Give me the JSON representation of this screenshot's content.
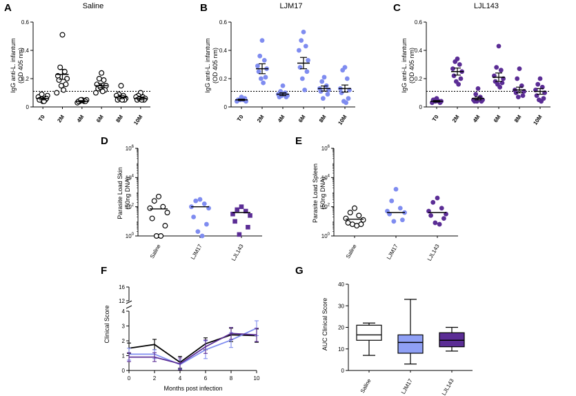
{
  "colors": {
    "saline": "#000000",
    "ljm17": "#7f8cf0",
    "ljl143": "#5b2d95",
    "ljm17_box": "#8fa0f5",
    "ljl143_box": "#5b2d95"
  },
  "panels": {
    "A": {
      "letter": "A",
      "title": "Saline",
      "ylabel1": "IgG anti-L. infantum",
      "ylabel2": "(OD 405 nm)"
    },
    "B": {
      "letter": "B",
      "title": "LJM17",
      "ylabel1": "IgG anti-L. infantum",
      "ylabel2": "(OD 405 nm)"
    },
    "C": {
      "letter": "C",
      "title": "LJL143",
      "ylabel1": "IgG anti-L. infantum",
      "ylabel2": "(OD 405 nm)"
    },
    "D": {
      "letter": "D",
      "ylabel1": "Parasite Load Skin",
      "ylabel2": "(50ng DNA)"
    },
    "E": {
      "letter": "E",
      "ylabel1": "Parasite Load Spleen",
      "ylabel2": "(50ng DNA)"
    },
    "F": {
      "letter": "F",
      "ylabel": "Clinical Score",
      "xlabel": "Months post infection"
    },
    "G": {
      "letter": "G",
      "ylabel": "AUC Clinical Score"
    }
  },
  "chart_data": [
    {
      "id": "A",
      "type": "scatter",
      "title": "Saline",
      "ylabel": "IgG anti-L. infantum (OD 405 nm)",
      "categories": [
        "T0",
        "2M",
        "4M",
        "6M",
        "8M",
        "10M"
      ],
      "yticks": [
        0,
        0.2,
        0.4,
        0.6
      ],
      "ylim": [
        0,
        0.6
      ],
      "threshold": 0.11,
      "marker": "open-circle",
      "points": [
        [
          0.04,
          0.06,
          0.05,
          0.07,
          0.08,
          0.05,
          0.06,
          0.09,
          0.04
        ],
        [
          0.51,
          0.28,
          0.25,
          0.22,
          0.2,
          0.19,
          0.16,
          0.15,
          0.12,
          0.1
        ],
        [
          0.05,
          0.04,
          0.04,
          0.03,
          0.05,
          0.04,
          0.04,
          0.05
        ],
        [
          0.24,
          0.2,
          0.19,
          0.16,
          0.15,
          0.13,
          0.12,
          0.14,
          0.11,
          0.1
        ],
        [
          0.15,
          0.09,
          0.08,
          0.08,
          0.06,
          0.05,
          0.05,
          0.06,
          0.05
        ],
        [
          0.1,
          0.08,
          0.07,
          0.07,
          0.06,
          0.05,
          0.05,
          0.06,
          0.05
        ]
      ],
      "means": [
        0.06,
        0.23,
        0.04,
        0.15,
        0.07,
        0.06
      ],
      "sem": [
        0.01,
        0.035,
        0.005,
        0.015,
        0.012,
        0.01
      ]
    },
    {
      "id": "B",
      "type": "scatter",
      "title": "LJM17",
      "ylabel": "IgG anti-L. infantum (OD 405 nm)",
      "categories": [
        "T0",
        "2M",
        "4M",
        "6M",
        "8M",
        "10M"
      ],
      "yticks": [
        0,
        0.2,
        0.4,
        0.6
      ],
      "ylim": [
        0,
        0.6
      ],
      "threshold": 0.11,
      "marker": "filled-circle",
      "points": [
        [
          0.07,
          0.05,
          0.05,
          0.04,
          0.04,
          0.05,
          0.06,
          0.05
        ],
        [
          0.47,
          0.36,
          0.33,
          0.29,
          0.27,
          0.25,
          0.21,
          0.2,
          0.17
        ],
        [
          0.15,
          0.11,
          0.1,
          0.09,
          0.08,
          0.07,
          0.07,
          0.08
        ],
        [
          0.53,
          0.47,
          0.43,
          0.4,
          0.33,
          0.28,
          0.25,
          0.2,
          0.12
        ],
        [
          0.21,
          0.18,
          0.15,
          0.13,
          0.12,
          0.11,
          0.09,
          0.06
        ],
        [
          0.28,
          0.26,
          0.2,
          0.13,
          0.12,
          0.1,
          0.06,
          0.04,
          0.03
        ]
      ],
      "means": [
        0.05,
        0.27,
        0.09,
        0.31,
        0.13,
        0.13
      ],
      "sem": [
        0.005,
        0.035,
        0.01,
        0.04,
        0.018,
        0.025
      ]
    },
    {
      "id": "C",
      "type": "scatter",
      "title": "LJL143",
      "ylabel": "IgG anti-L. infantum (OD 405 nm)",
      "categories": [
        "T0",
        "2M",
        "4M",
        "6M",
        "8M",
        "10M"
      ],
      "yticks": [
        0,
        0.2,
        0.4,
        0.6
      ],
      "ylim": [
        0,
        0.6
      ],
      "threshold": 0.11,
      "marker": "filled-circle",
      "points": [
        [
          0.06,
          0.05,
          0.04,
          0.03,
          0.04,
          0.05,
          0.03,
          0.04
        ],
        [
          0.34,
          0.32,
          0.3,
          0.27,
          0.25,
          0.22,
          0.2,
          0.18,
          0.16
        ],
        [
          0.13,
          0.09,
          0.07,
          0.05,
          0.05,
          0.04,
          0.04,
          0.04
        ],
        [
          0.43,
          0.28,
          0.26,
          0.22,
          0.2,
          0.18,
          0.17,
          0.16,
          0.14
        ],
        [
          0.27,
          0.2,
          0.15,
          0.12,
          0.11,
          0.1,
          0.08,
          0.07
        ],
        [
          0.2,
          0.16,
          0.14,
          0.12,
          0.1,
          0.08,
          0.06,
          0.05,
          0.04
        ]
      ],
      "means": [
        0.04,
        0.25,
        0.06,
        0.21,
        0.12,
        0.11
      ],
      "sem": [
        0.005,
        0.025,
        0.01,
        0.03,
        0.02,
        0.02
      ]
    },
    {
      "id": "D",
      "type": "scatter",
      "scale": "log",
      "ylabel": "Parasite Load Skin (50ng DNA)",
      "categories": [
        "Saline",
        "LJM17",
        "LJL143"
      ],
      "yticks": [
        "10^0",
        "10^2",
        "10^4",
        "10^6"
      ],
      "ylim_log10": [
        0,
        6
      ],
      "markers": [
        "open-circle",
        "filled-circle",
        "filled-square"
      ],
      "points_log10": [
        [
          2.7,
          2.4,
          2.0,
          1.9,
          1.6,
          1.2,
          0.7,
          0.0,
          0.0
        ],
        [
          2.5,
          2.4,
          2.2,
          2.0,
          1.9,
          1.3,
          0.8,
          0.3,
          0.0
        ],
        [
          2.0,
          1.8,
          1.7,
          1.5,
          1.4,
          1.0,
          0.6,
          0.1
        ]
      ],
      "median_log10": [
        1.85,
        2.0,
        1.6
      ]
    },
    {
      "id": "E",
      "type": "scatter",
      "scale": "log",
      "ylabel": "Parasite Load Spleen (50ng DNA)",
      "categories": [
        "Saline",
        "LJM17",
        "LJL143"
      ],
      "yticks": [
        "10^0",
        "10^2",
        "10^4",
        "10^6"
      ],
      "ylim_log10": [
        0,
        6
      ],
      "markers": [
        "open-circle",
        "filled-circle",
        "filled-circle"
      ],
      "points_log10": [
        [
          1.9,
          1.6,
          1.4,
          1.2,
          1.1,
          0.9,
          0.8,
          0.8,
          0.7
        ],
        [
          3.2,
          2.4,
          1.9,
          1.7,
          1.6,
          1.5,
          1.1,
          1.0
        ],
        [
          2.6,
          2.3,
          1.9,
          1.7,
          1.5,
          1.4,
          1.2,
          0.9,
          0.8
        ]
      ],
      "median_log10": [
        1.15,
        1.6,
        1.6
      ]
    },
    {
      "id": "F",
      "type": "line",
      "ylabel": "Clinical Score",
      "xlabel": "Months post infection",
      "x": [
        0,
        2,
        4,
        6,
        8,
        10
      ],
      "xticks": [
        0,
        2,
        4,
        6,
        8,
        10
      ],
      "yticks_lower": [
        0,
        1,
        2,
        3,
        4
      ],
      "yticks_upper": [
        12,
        16
      ],
      "ylim": [
        0,
        16
      ],
      "series": [
        {
          "name": "Saline",
          "values": [
            1.5,
            1.75,
            0.55,
            1.8,
            2.4,
            2.35
          ],
          "err": [
            0.35,
            0.35,
            0.4,
            0.4,
            0.45,
            0.45
          ]
        },
        {
          "name": "LJM17",
          "values": [
            1.1,
            1.1,
            0.4,
            1.4,
            2.05,
            2.85
          ],
          "err": [
            0.4,
            0.3,
            0.3,
            0.6,
            0.5,
            0.5
          ]
        },
        {
          "name": "LJL143",
          "values": [
            0.9,
            0.9,
            0.45,
            1.6,
            2.5,
            2.4
          ],
          "err": [
            0.3,
            0.3,
            0.4,
            0.45,
            0.4,
            0.45
          ]
        }
      ]
    },
    {
      "id": "G",
      "type": "box",
      "ylabel": "AUC Clinical Score",
      "categories": [
        "Saline",
        "LJM17",
        "LJL143"
      ],
      "yticks": [
        0,
        10,
        20,
        30,
        40
      ],
      "ylim": [
        0,
        40
      ],
      "boxes": [
        {
          "min": 7,
          "q1": 14,
          "median": 16.5,
          "q3": 21,
          "max": 22
        },
        {
          "min": 3,
          "q1": 8,
          "median": 13,
          "q3": 16.5,
          "max": 33
        },
        {
          "min": 9,
          "q1": 11,
          "median": 14,
          "q3": 17.5,
          "max": 20
        }
      ]
    }
  ]
}
